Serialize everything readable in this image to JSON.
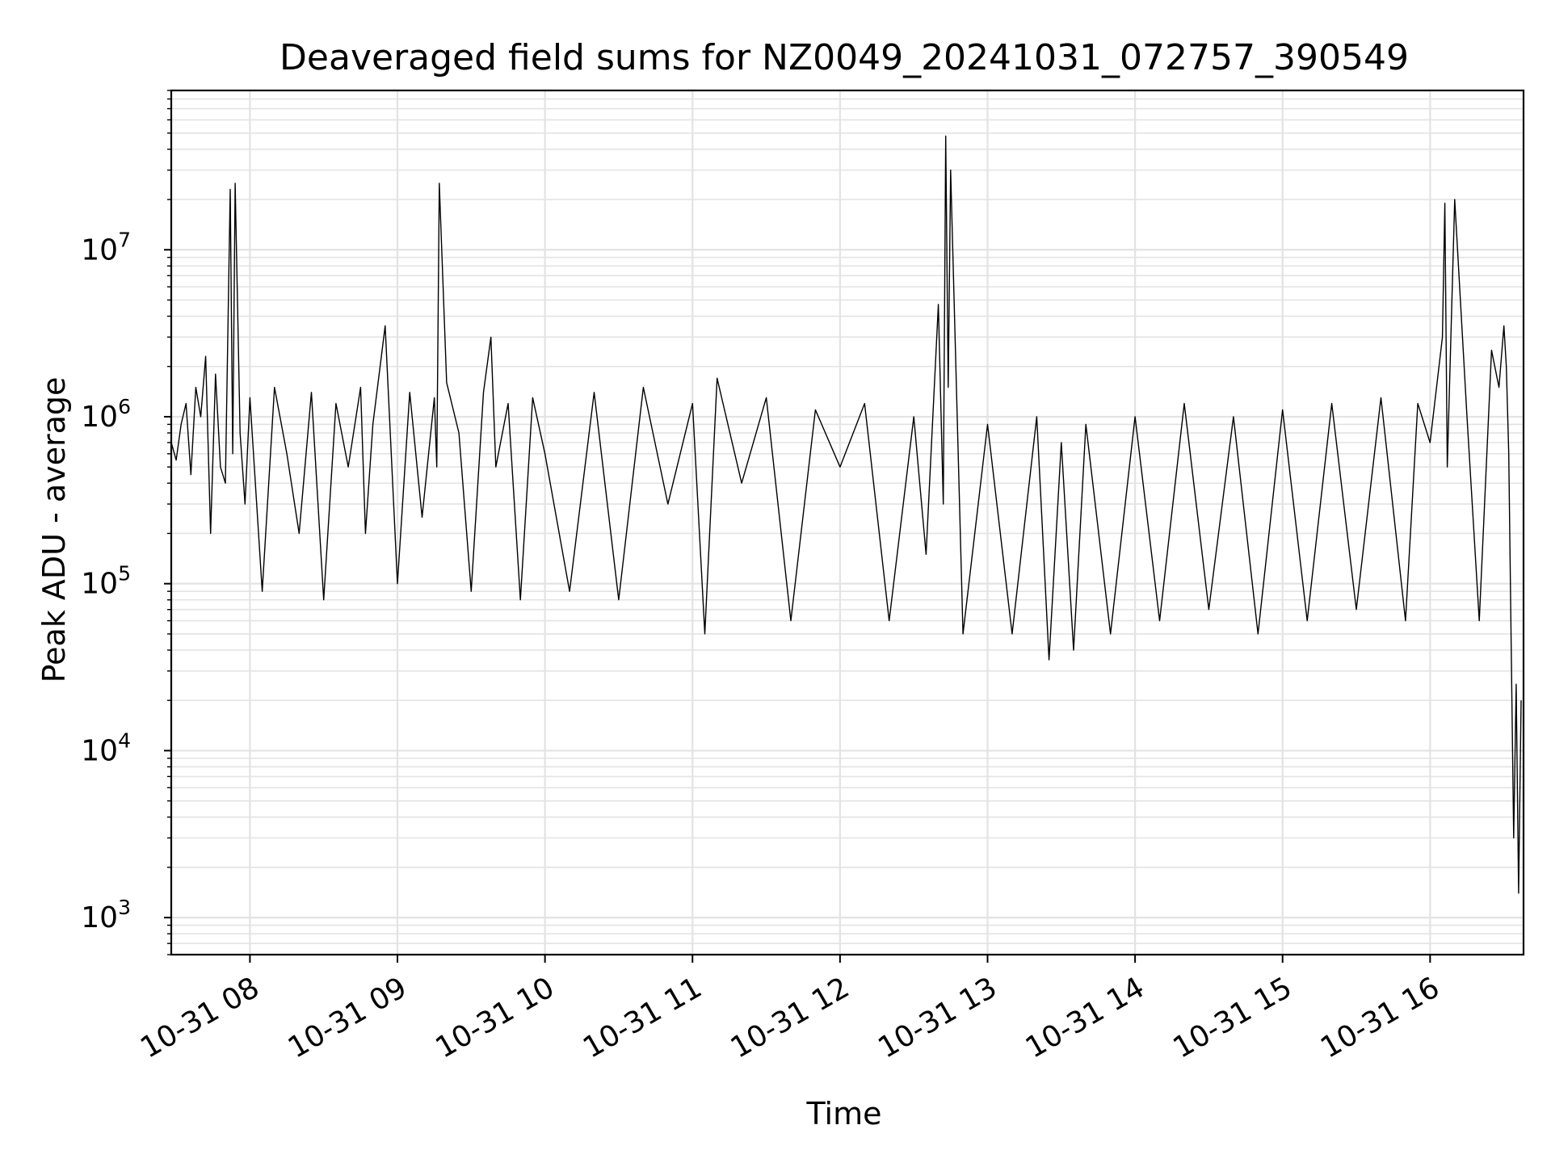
{
  "chart_data": {
    "type": "line",
    "title": "Deaveraged field sums for NZ0049_20241031_072757_390549",
    "xlabel": "Time",
    "ylabel": "Peak ADU - average",
    "yscale": "log",
    "ylim": [
      600,
      90000000
    ],
    "xlim": [
      "2024-10-31T07:28:00",
      "2024-10-31T16:38:00"
    ],
    "xtick_labels": [
      "10-31 08",
      "10-31 09",
      "10-31 10",
      "10-31 11",
      "10-31 12",
      "10-31 13",
      "10-31 14",
      "10-31 15",
      "10-31 16"
    ],
    "xtick_times": [
      "2024-10-31T08:00:00",
      "2024-10-31T09:00:00",
      "2024-10-31T10:00:00",
      "2024-10-31T11:00:00",
      "2024-10-31T12:00:00",
      "2024-10-31T13:00:00",
      "2024-10-31T14:00:00",
      "2024-10-31T15:00:00",
      "2024-10-31T16:00:00"
    ],
    "ytick_labels": [
      {
        "base": "10",
        "exp": "3"
      },
      {
        "base": "10",
        "exp": "4"
      },
      {
        "base": "10",
        "exp": "5"
      },
      {
        "base": "10",
        "exp": "6"
      },
      {
        "base": "10",
        "exp": "7"
      }
    ],
    "ytick_values": [
      1000,
      10000,
      100000,
      1000000,
      10000000
    ],
    "grid": true,
    "line_color": "#000000",
    "grid_color": "#e3e3e3",
    "series": [
      {
        "x": [
          "2024-10-31T07:28:00",
          "2024-10-31T07:30:00",
          "2024-10-31T07:32:00",
          "2024-10-31T07:34:00",
          "2024-10-31T07:36:00",
          "2024-10-31T07:38:00",
          "2024-10-31T07:40:00",
          "2024-10-31T07:42:00",
          "2024-10-31T07:44:00",
          "2024-10-31T07:46:00",
          "2024-10-31T07:48:00",
          "2024-10-31T07:50:00",
          "2024-10-31T07:52:00",
          "2024-10-31T07:53:00",
          "2024-10-31T07:54:00",
          "2024-10-31T07:56:00",
          "2024-10-31T07:58:00",
          "2024-10-31T08:00:00",
          "2024-10-31T08:05:00",
          "2024-10-31T08:10:00",
          "2024-10-31T08:15:00",
          "2024-10-31T08:20:00",
          "2024-10-31T08:25:00",
          "2024-10-31T08:30:00",
          "2024-10-31T08:35:00",
          "2024-10-31T08:40:00",
          "2024-10-31T08:45:00",
          "2024-10-31T08:47:00",
          "2024-10-31T08:50:00",
          "2024-10-31T08:55:00",
          "2024-10-31T09:00:00",
          "2024-10-31T09:05:00",
          "2024-10-31T09:10:00",
          "2024-10-31T09:15:00",
          "2024-10-31T09:16:00",
          "2024-10-31T09:17:00",
          "2024-10-31T09:20:00",
          "2024-10-31T09:25:00",
          "2024-10-31T09:30:00",
          "2024-10-31T09:35:00",
          "2024-10-31T09:38:00",
          "2024-10-31T09:40:00",
          "2024-10-31T09:45:00",
          "2024-10-31T09:50:00",
          "2024-10-31T09:55:00",
          "2024-10-31T10:00:00",
          "2024-10-31T10:10:00",
          "2024-10-31T10:20:00",
          "2024-10-31T10:30:00",
          "2024-10-31T10:40:00",
          "2024-10-31T10:50:00",
          "2024-10-31T11:00:00",
          "2024-10-31T11:05:00",
          "2024-10-31T11:10:00",
          "2024-10-31T11:20:00",
          "2024-10-31T11:30:00",
          "2024-10-31T11:40:00",
          "2024-10-31T11:50:00",
          "2024-10-31T12:00:00",
          "2024-10-31T12:10:00",
          "2024-10-31T12:20:00",
          "2024-10-31T12:30:00",
          "2024-10-31T12:35:00",
          "2024-10-31T12:40:00",
          "2024-10-31T12:42:00",
          "2024-10-31T12:43:00",
          "2024-10-31T12:44:00",
          "2024-10-31T12:45:00",
          "2024-10-31T12:50:00",
          "2024-10-31T13:00:00",
          "2024-10-31T13:10:00",
          "2024-10-31T13:20:00",
          "2024-10-31T13:25:00",
          "2024-10-31T13:30:00",
          "2024-10-31T13:35:00",
          "2024-10-31T13:40:00",
          "2024-10-31T13:50:00",
          "2024-10-31T14:00:00",
          "2024-10-31T14:10:00",
          "2024-10-31T14:20:00",
          "2024-10-31T14:30:00",
          "2024-10-31T14:40:00",
          "2024-10-31T14:50:00",
          "2024-10-31T15:00:00",
          "2024-10-31T15:10:00",
          "2024-10-31T15:20:00",
          "2024-10-31T15:30:00",
          "2024-10-31T15:40:00",
          "2024-10-31T15:50:00",
          "2024-10-31T15:55:00",
          "2024-10-31T16:00:00",
          "2024-10-31T16:05:00",
          "2024-10-31T16:06:00",
          "2024-10-31T16:07:00",
          "2024-10-31T16:10:00",
          "2024-10-31T16:15:00",
          "2024-10-31T16:20:00",
          "2024-10-31T16:25:00",
          "2024-10-31T16:28:00",
          "2024-10-31T16:30:00",
          "2024-10-31T16:31:00",
          "2024-10-31T16:32:00",
          "2024-10-31T16:33:00",
          "2024-10-31T16:34:00",
          "2024-10-31T16:35:00",
          "2024-10-31T16:36:00",
          "2024-10-31T16:37:00"
        ],
        "y": [
          700000,
          550000,
          900000,
          1200000,
          450000,
          1500000,
          1000000,
          2300000,
          200000,
          1800000,
          500000,
          400000,
          23000000,
          600000,
          25000000,
          800000,
          300000,
          1300000,
          90000,
          1500000,
          600000,
          200000,
          1400000,
          80000,
          1200000,
          500000,
          1500000,
          200000,
          900000,
          3500000,
          100000,
          1400000,
          250000,
          1300000,
          500000,
          25000000,
          1600000,
          800000,
          90000,
          1400000,
          3000000,
          500000,
          1200000,
          80000,
          1300000,
          600000,
          90000,
          1400000,
          80000,
          1500000,
          300000,
          1200000,
          50000,
          1700000,
          400000,
          1300000,
          60000,
          1100000,
          500000,
          1200000,
          60000,
          1000000,
          150000,
          4700000,
          300000,
          48000000,
          1500000,
          30000000,
          50000,
          900000,
          50000,
          1000000,
          35000,
          700000,
          40000,
          900000,
          50000,
          1000000,
          60000,
          1200000,
          70000,
          1000000,
          50000,
          1100000,
          60000,
          1200000,
          70000,
          1300000,
          60000,
          1200000,
          700000,
          3000000,
          19000000,
          500000,
          20000000,
          1000000,
          60000,
          2500000,
          1500000,
          3500000,
          2000000,
          600000,
          40000,
          3000,
          25000,
          1400,
          20000
        ]
      }
    ]
  }
}
